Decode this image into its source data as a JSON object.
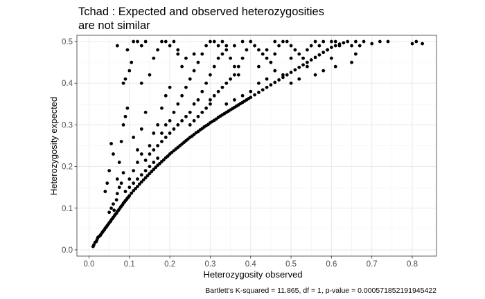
{
  "chart_data": {
    "type": "scatter",
    "title_lines": [
      "Tchad : Expected and observed heterozygosities",
      "are not similar"
    ],
    "xlabel": "Heterozygosity observed",
    "ylabel": "Heterozygosity expected",
    "caption": "Bartlett's K-squared = 11.865, df = 1, p-value = 0.000571852191945422",
    "xlim": [
      -0.03,
      0.86
    ],
    "ylim": [
      -0.015,
      0.515
    ],
    "xticks": [
      0.0,
      0.1,
      0.2,
      0.3,
      0.4,
      0.5,
      0.6,
      0.7,
      0.8
    ],
    "xtick_labels": [
      "0.0",
      "0.1",
      "0.2",
      "0.3",
      "0.4",
      "0.5",
      "0.6",
      "0.7",
      "0.8"
    ],
    "yticks": [
      0.0,
      0.1,
      0.2,
      0.3,
      0.4,
      0.5
    ],
    "ytick_labels": [
      "0.0",
      "0.1",
      "0.2",
      "0.3",
      "0.4",
      "0.5"
    ],
    "grid": true,
    "point_color": "#000000",
    "points": [
      [
        0.01,
        0.008
      ],
      [
        0.012,
        0.012
      ],
      [
        0.015,
        0.018
      ],
      [
        0.018,
        0.02
      ],
      [
        0.02,
        0.025
      ],
      [
        0.022,
        0.03
      ],
      [
        0.025,
        0.032
      ],
      [
        0.028,
        0.035
      ],
      [
        0.03,
        0.038
      ],
      [
        0.033,
        0.042
      ],
      [
        0.035,
        0.045
      ],
      [
        0.038,
        0.048
      ],
      [
        0.04,
        0.052
      ],
      [
        0.043,
        0.055
      ],
      [
        0.045,
        0.058
      ],
      [
        0.048,
        0.062
      ],
      [
        0.05,
        0.065
      ],
      [
        0.053,
        0.068
      ],
      [
        0.055,
        0.072
      ],
      [
        0.058,
        0.075
      ],
      [
        0.06,
        0.078
      ],
      [
        0.063,
        0.082
      ],
      [
        0.065,
        0.085
      ],
      [
        0.068,
        0.088
      ],
      [
        0.07,
        0.092
      ],
      [
        0.073,
        0.095
      ],
      [
        0.075,
        0.098
      ],
      [
        0.078,
        0.102
      ],
      [
        0.08,
        0.105
      ],
      [
        0.083,
        0.108
      ],
      [
        0.085,
        0.112
      ],
      [
        0.088,
        0.115
      ],
      [
        0.09,
        0.118
      ],
      [
        0.093,
        0.121
      ],
      [
        0.095,
        0.124
      ],
      [
        0.098,
        0.127
      ],
      [
        0.1,
        0.13
      ],
      [
        0.105,
        0.136
      ],
      [
        0.11,
        0.142
      ],
      [
        0.115,
        0.147
      ],
      [
        0.12,
        0.152
      ],
      [
        0.125,
        0.158
      ],
      [
        0.13,
        0.163
      ],
      [
        0.135,
        0.168
      ],
      [
        0.14,
        0.173
      ],
      [
        0.145,
        0.178
      ],
      [
        0.15,
        0.183
      ],
      [
        0.155,
        0.188
      ],
      [
        0.16,
        0.193
      ],
      [
        0.165,
        0.198
      ],
      [
        0.17,
        0.203
      ],
      [
        0.175,
        0.207
      ],
      [
        0.18,
        0.212
      ],
      [
        0.185,
        0.216
      ],
      [
        0.19,
        0.221
      ],
      [
        0.195,
        0.225
      ],
      [
        0.2,
        0.23
      ],
      [
        0.205,
        0.234
      ],
      [
        0.21,
        0.238
      ],
      [
        0.215,
        0.242
      ],
      [
        0.22,
        0.246
      ],
      [
        0.225,
        0.25
      ],
      [
        0.23,
        0.254
      ],
      [
        0.235,
        0.258
      ],
      [
        0.24,
        0.262
      ],
      [
        0.245,
        0.266
      ],
      [
        0.25,
        0.27
      ],
      [
        0.255,
        0.273
      ],
      [
        0.26,
        0.277
      ],
      [
        0.265,
        0.281
      ],
      [
        0.27,
        0.284
      ],
      [
        0.275,
        0.288
      ],
      [
        0.28,
        0.291
      ],
      [
        0.285,
        0.295
      ],
      [
        0.29,
        0.298
      ],
      [
        0.295,
        0.301
      ],
      [
        0.3,
        0.305
      ],
      [
        0.305,
        0.308
      ],
      [
        0.31,
        0.311
      ],
      [
        0.315,
        0.314
      ],
      [
        0.32,
        0.318
      ],
      [
        0.325,
        0.321
      ],
      [
        0.33,
        0.324
      ],
      [
        0.335,
        0.327
      ],
      [
        0.34,
        0.33
      ],
      [
        0.345,
        0.333
      ],
      [
        0.35,
        0.336
      ],
      [
        0.355,
        0.339
      ],
      [
        0.36,
        0.342
      ],
      [
        0.365,
        0.345
      ],
      [
        0.37,
        0.348
      ],
      [
        0.375,
        0.351
      ],
      [
        0.38,
        0.354
      ],
      [
        0.385,
        0.357
      ],
      [
        0.39,
        0.36
      ],
      [
        0.395,
        0.363
      ],
      [
        0.4,
        0.366
      ],
      [
        0.41,
        0.372
      ],
      [
        0.42,
        0.378
      ],
      [
        0.43,
        0.384
      ],
      [
        0.44,
        0.39
      ],
      [
        0.45,
        0.396
      ],
      [
        0.46,
        0.402
      ],
      [
        0.47,
        0.408
      ],
      [
        0.48,
        0.414
      ],
      [
        0.49,
        0.42
      ],
      [
        0.5,
        0.426
      ],
      [
        0.51,
        0.432
      ],
      [
        0.52,
        0.438
      ],
      [
        0.53,
        0.444
      ],
      [
        0.54,
        0.45
      ],
      [
        0.55,
        0.456
      ],
      [
        0.56,
        0.462
      ],
      [
        0.57,
        0.468
      ],
      [
        0.58,
        0.474
      ],
      [
        0.59,
        0.48
      ],
      [
        0.6,
        0.486
      ],
      [
        0.61,
        0.49
      ],
      [
        0.62,
        0.494
      ],
      [
        0.63,
        0.497
      ],
      [
        0.05,
        0.09
      ],
      [
        0.055,
        0.1
      ],
      [
        0.06,
        0.11
      ],
      [
        0.062,
        0.095
      ],
      [
        0.068,
        0.12
      ],
      [
        0.07,
        0.135
      ],
      [
        0.075,
        0.15
      ],
      [
        0.08,
        0.16
      ],
      [
        0.07,
        0.17
      ],
      [
        0.085,
        0.185
      ],
      [
        0.04,
        0.14
      ],
      [
        0.045,
        0.16
      ],
      [
        0.05,
        0.19
      ],
      [
        0.055,
        0.255
      ],
      [
        0.06,
        0.23
      ],
      [
        0.075,
        0.21
      ],
      [
        0.08,
        0.26
      ],
      [
        0.085,
        0.3
      ],
      [
        0.09,
        0.32
      ],
      [
        0.095,
        0.34
      ],
      [
        0.085,
        0.4
      ],
      [
        0.09,
        0.41
      ],
      [
        0.1,
        0.43
      ],
      [
        0.105,
        0.45
      ],
      [
        0.095,
        0.48
      ],
      [
        0.07,
        0.49
      ],
      [
        0.11,
        0.5
      ],
      [
        0.12,
        0.5
      ],
      [
        0.13,
        0.49
      ],
      [
        0.14,
        0.5
      ],
      [
        0.11,
        0.27
      ],
      [
        0.12,
        0.24
      ],
      [
        0.13,
        0.29
      ],
      [
        0.14,
        0.33
      ],
      [
        0.15,
        0.25
      ],
      [
        0.16,
        0.28
      ],
      [
        0.17,
        0.3
      ],
      [
        0.18,
        0.34
      ],
      [
        0.19,
        0.37
      ],
      [
        0.2,
        0.39
      ],
      [
        0.13,
        0.4
      ],
      [
        0.15,
        0.42
      ],
      [
        0.16,
        0.46
      ],
      [
        0.17,
        0.48
      ],
      [
        0.18,
        0.5
      ],
      [
        0.19,
        0.5
      ],
      [
        0.2,
        0.49
      ],
      [
        0.21,
        0.5
      ],
      [
        0.22,
        0.47
      ],
      [
        0.23,
        0.44
      ],
      [
        0.18,
        0.28
      ],
      [
        0.19,
        0.3
      ],
      [
        0.2,
        0.31
      ],
      [
        0.21,
        0.33
      ],
      [
        0.22,
        0.35
      ],
      [
        0.23,
        0.37
      ],
      [
        0.24,
        0.39
      ],
      [
        0.25,
        0.41
      ],
      [
        0.26,
        0.43
      ],
      [
        0.27,
        0.45
      ],
      [
        0.28,
        0.47
      ],
      [
        0.29,
        0.49
      ],
      [
        0.3,
        0.5
      ],
      [
        0.31,
        0.5
      ],
      [
        0.32,
        0.49
      ],
      [
        0.33,
        0.5
      ],
      [
        0.34,
        0.48
      ],
      [
        0.35,
        0.46
      ],
      [
        0.36,
        0.44
      ],
      [
        0.37,
        0.42
      ],
      [
        0.25,
        0.33
      ],
      [
        0.26,
        0.35
      ],
      [
        0.27,
        0.36
      ],
      [
        0.28,
        0.38
      ],
      [
        0.29,
        0.4
      ],
      [
        0.3,
        0.42
      ],
      [
        0.31,
        0.44
      ],
      [
        0.32,
        0.46
      ],
      [
        0.33,
        0.47
      ],
      [
        0.34,
        0.49
      ],
      [
        0.3,
        0.36
      ],
      [
        0.31,
        0.37
      ],
      [
        0.32,
        0.38
      ],
      [
        0.33,
        0.39
      ],
      [
        0.34,
        0.4
      ],
      [
        0.35,
        0.41
      ],
      [
        0.36,
        0.42
      ],
      [
        0.37,
        0.44
      ],
      [
        0.38,
        0.46
      ],
      [
        0.39,
        0.48
      ],
      [
        0.4,
        0.5
      ],
      [
        0.41,
        0.49
      ],
      [
        0.42,
        0.48
      ],
      [
        0.43,
        0.47
      ],
      [
        0.44,
        0.46
      ],
      [
        0.45,
        0.45
      ],
      [
        0.46,
        0.47
      ],
      [
        0.47,
        0.49
      ],
      [
        0.48,
        0.5
      ],
      [
        0.49,
        0.5
      ],
      [
        0.5,
        0.49
      ],
      [
        0.51,
        0.48
      ],
      [
        0.52,
        0.47
      ],
      [
        0.53,
        0.46
      ],
      [
        0.54,
        0.48
      ],
      [
        0.55,
        0.49
      ],
      [
        0.56,
        0.5
      ],
      [
        0.57,
        0.49
      ],
      [
        0.58,
        0.5
      ],
      [
        0.59,
        0.48
      ],
      [
        0.6,
        0.5
      ],
      [
        0.61,
        0.5
      ],
      [
        0.62,
        0.49
      ],
      [
        0.64,
        0.5
      ],
      [
        0.65,
        0.49
      ],
      [
        0.66,
        0.5
      ],
      [
        0.67,
        0.49
      ],
      [
        0.68,
        0.5
      ],
      [
        0.7,
        0.495
      ],
      [
        0.72,
        0.5
      ],
      [
        0.74,
        0.5
      ],
      [
        0.8,
        0.495
      ],
      [
        0.81,
        0.5
      ],
      [
        0.825,
        0.495
      ],
      [
        0.65,
        0.45
      ],
      [
        0.66,
        0.47
      ],
      [
        0.6,
        0.46
      ],
      [
        0.61,
        0.44
      ],
      [
        0.58,
        0.43
      ],
      [
        0.56,
        0.42
      ],
      [
        0.52,
        0.41
      ],
      [
        0.5,
        0.4
      ],
      [
        0.48,
        0.42
      ],
      [
        0.46,
        0.43
      ],
      [
        0.44,
        0.41
      ],
      [
        0.42,
        0.4
      ],
      [
        0.4,
        0.38
      ],
      [
        0.38,
        0.37
      ],
      [
        0.36,
        0.36
      ],
      [
        0.34,
        0.35
      ],
      [
        0.15,
        0.2
      ],
      [
        0.16,
        0.21
      ],
      [
        0.17,
        0.22
      ],
      [
        0.14,
        0.19
      ],
      [
        0.13,
        0.18
      ],
      [
        0.12,
        0.17
      ],
      [
        0.11,
        0.16
      ],
      [
        0.1,
        0.15
      ],
      [
        0.09,
        0.14
      ],
      [
        0.1,
        0.17
      ],
      [
        0.11,
        0.19
      ],
      [
        0.12,
        0.21
      ],
      [
        0.13,
        0.23
      ],
      [
        0.14,
        0.215
      ],
      [
        0.15,
        0.23
      ],
      [
        0.16,
        0.24
      ],
      [
        0.17,
        0.25
      ],
      [
        0.18,
        0.26
      ],
      [
        0.19,
        0.27
      ],
      [
        0.2,
        0.28
      ],
      [
        0.21,
        0.29
      ],
      [
        0.22,
        0.3
      ],
      [
        0.23,
        0.31
      ],
      [
        0.24,
        0.32
      ],
      [
        0.25,
        0.3
      ],
      [
        0.26,
        0.31
      ],
      [
        0.27,
        0.32
      ],
      [
        0.28,
        0.33
      ],
      [
        0.29,
        0.34
      ],
      [
        0.3,
        0.35
      ],
      [
        0.42,
        0.44
      ],
      [
        0.44,
        0.48
      ],
      [
        0.46,
        0.5
      ],
      [
        0.5,
        0.46
      ],
      [
        0.54,
        0.44
      ],
      [
        0.36,
        0.49
      ],
      [
        0.38,
        0.5
      ],
      [
        0.26,
        0.47
      ],
      [
        0.24,
        0.46
      ],
      [
        0.22,
        0.48
      ]
    ]
  }
}
